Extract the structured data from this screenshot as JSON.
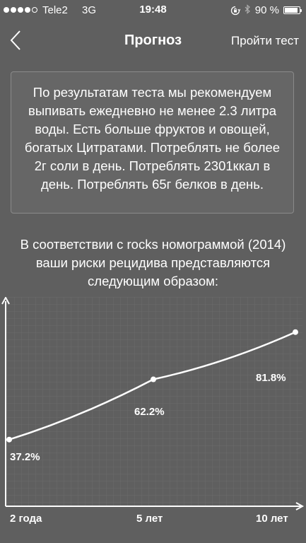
{
  "status_bar": {
    "carrier": "Tele2",
    "network": "3G",
    "time": "19:48",
    "battery": "90 %",
    "battery_level": 0.9,
    "signal_filled": 4,
    "signal_total": 5
  },
  "nav": {
    "title": "Прогноз",
    "action": "Пройти тест"
  },
  "recommendation": "По результатам теста мы рекомендуем выпивать ежедневно не менее 2.3 литра воды. Есть больше фруктов и овощей, богатых Цитратами. Потреблять не более 2г соли в день. Потреблять 2301ккал в день. Потреблять 65г белков в день.",
  "caption": "В соответствии с rocks номограммой (2014) ваши риски рецидива представляются следующим образом:",
  "chart_data": {
    "type": "line",
    "categories": [
      "2 года",
      "5 лет",
      "10 лет"
    ],
    "values": [
      37.2,
      62.2,
      81.8
    ],
    "value_labels": [
      "37.2%",
      "62.2%",
      "81.8%"
    ],
    "ylim": [
      0,
      100
    ],
    "grid": true,
    "line_color": "#ffffff",
    "background_color": "#5f5f5f"
  }
}
